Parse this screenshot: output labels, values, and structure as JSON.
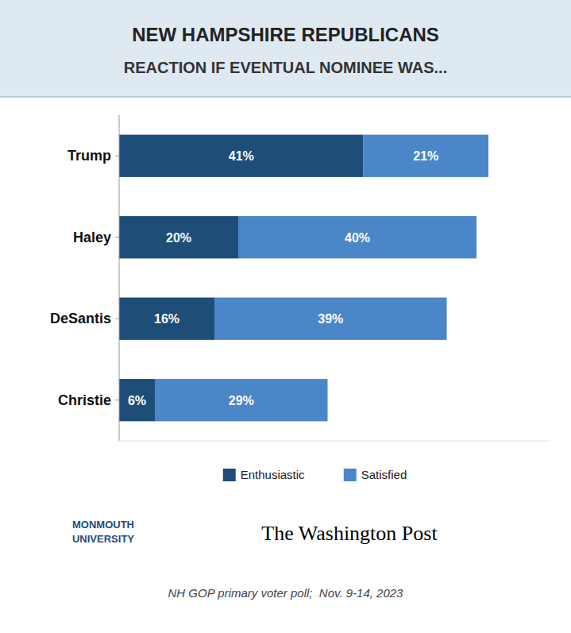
{
  "chart_data": {
    "type": "bar",
    "orientation": "horizontal",
    "stacked": true,
    "title": "NEW HAMPSHIRE REPUBLICANS",
    "subtitle": "REACTION IF EVENTUAL NOMINEE WAS...",
    "categories": [
      "Trump",
      "Haley",
      "DeSantis",
      "Christie"
    ],
    "series": [
      {
        "name": "Enthusiastic",
        "color": "#1e4d78",
        "values": [
          41,
          20,
          16,
          6
        ],
        "value_labels": [
          "41%",
          "20%",
          "16%",
          "6%"
        ]
      },
      {
        "name": "Satisfied",
        "color": "#4a86c8",
        "values": [
          21,
          40,
          39,
          29
        ],
        "value_labels": [
          "21%",
          "40%",
          "39%",
          "29%"
        ]
      }
    ],
    "xlim": [
      0,
      72
    ],
    "tick_labels": "y",
    "grid": false,
    "legend": "bottom",
    "data_labels": true,
    "annotations": [
      "MONMOUTH\nUNIVERSITY",
      "The Washington Post",
      "NH GOP primary voter poll;  Nov. 9-14, 2023"
    ]
  }
}
